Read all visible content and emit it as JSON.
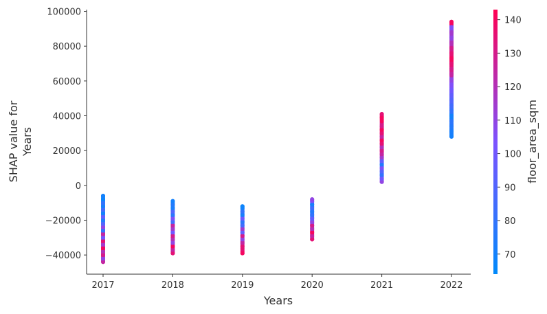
{
  "chart_data": {
    "type": "scatter",
    "title": "",
    "xlabel": "Years",
    "ylabel_lines": [
      "SHAP value for",
      "Years"
    ],
    "categories": [
      "2017",
      "2018",
      "2019",
      "2020",
      "2021",
      "2022"
    ],
    "x_tick_labels": [
      "2017",
      "2018",
      "2019",
      "2020",
      "2021",
      "2022"
    ],
    "ylim": [
      -51000,
      101000
    ],
    "y_ticks": [
      -40000,
      -20000,
      0,
      20000,
      40000,
      60000,
      80000,
      100000
    ],
    "y_tick_labels": [
      "−40000",
      "−20000",
      "0",
      "20000",
      "40000",
      "60000",
      "80000",
      "100000"
    ],
    "grid": false,
    "colorbar": {
      "label": "floor_area_sqm",
      "range": [
        64,
        143
      ],
      "ticks": [
        70,
        80,
        90,
        100,
        110,
        120,
        130,
        140
      ],
      "tick_labels": [
        "70",
        "80",
        "90",
        "100",
        "110",
        "120",
        "130",
        "140"
      ],
      "color_low": "#008afb",
      "color_mid": "#7c52ff",
      "color_high": "#ff0052"
    },
    "series": [
      {
        "x": "2017",
        "y_min": -44000,
        "y_max": -6000,
        "points": [
          {
            "y": -44000,
            "c": 125
          },
          {
            "y": -42000,
            "c": 110
          },
          {
            "y": -40000,
            "c": 130
          },
          {
            "y": -38000,
            "c": 120
          },
          {
            "y": -36000,
            "c": 140
          },
          {
            "y": -34000,
            "c": 115
          },
          {
            "y": -32000,
            "c": 135
          },
          {
            "y": -30000,
            "c": 100
          },
          {
            "y": -28000,
            "c": 125
          },
          {
            "y": -26000,
            "c": 80
          },
          {
            "y": -24000,
            "c": 110
          },
          {
            "y": -22000,
            "c": 90
          },
          {
            "y": -20000,
            "c": 75
          },
          {
            "y": -18000,
            "c": 95
          },
          {
            "y": -16000,
            "c": 70
          },
          {
            "y": -14000,
            "c": 85
          },
          {
            "y": -12000,
            "c": 72
          },
          {
            "y": -10000,
            "c": 80
          },
          {
            "y": -8000,
            "c": 68
          },
          {
            "y": -6000,
            "c": 70
          }
        ]
      },
      {
        "x": "2018",
        "y_min": -39000,
        "y_max": -9000,
        "points": [
          {
            "y": -39000,
            "c": 135
          },
          {
            "y": -37000,
            "c": 125
          },
          {
            "y": -35000,
            "c": 140
          },
          {
            "y": -33000,
            "c": 110
          },
          {
            "y": -31000,
            "c": 120
          },
          {
            "y": -29000,
            "c": 130
          },
          {
            "y": -27000,
            "c": 100
          },
          {
            "y": -25000,
            "c": 115
          },
          {
            "y": -23000,
            "c": 125
          },
          {
            "y": -21000,
            "c": 85
          },
          {
            "y": -19000,
            "c": 105
          },
          {
            "y": -17000,
            "c": 78
          },
          {
            "y": -15000,
            "c": 90
          },
          {
            "y": -13000,
            "c": 72
          },
          {
            "y": -11000,
            "c": 75
          },
          {
            "y": -9000,
            "c": 70
          }
        ]
      },
      {
        "x": "2019",
        "y_min": -39000,
        "y_max": -12000,
        "points": [
          {
            "y": -39000,
            "c": 140
          },
          {
            "y": -35000,
            "c": 135
          },
          {
            "y": -33000,
            "c": 125
          },
          {
            "y": -31000,
            "c": 110
          },
          {
            "y": -29000,
            "c": 130
          },
          {
            "y": -27000,
            "c": 95
          },
          {
            "y": -25000,
            "c": 115
          },
          {
            "y": -23000,
            "c": 85
          },
          {
            "y": -21000,
            "c": 78
          },
          {
            "y": -19000,
            "c": 100
          },
          {
            "y": -17000,
            "c": 72
          },
          {
            "y": -15000,
            "c": 80
          },
          {
            "y": -13000,
            "c": 70
          },
          {
            "y": -12000,
            "c": 68
          }
        ]
      },
      {
        "x": "2020",
        "y_min": -31000,
        "y_max": -8000,
        "points": [
          {
            "y": -31000,
            "c": 135
          },
          {
            "y": -29000,
            "c": 125
          },
          {
            "y": -27000,
            "c": 140
          },
          {
            "y": -25000,
            "c": 120
          },
          {
            "y": -23000,
            "c": 130
          },
          {
            "y": -21000,
            "c": 110
          },
          {
            "y": -19000,
            "c": 95
          },
          {
            "y": -17000,
            "c": 80
          },
          {
            "y": -15000,
            "c": 75
          },
          {
            "y": -13000,
            "c": 85
          },
          {
            "y": -11000,
            "c": 72
          },
          {
            "y": -9000,
            "c": 105
          },
          {
            "y": -8000,
            "c": 110
          }
        ]
      },
      {
        "x": "2021",
        "y_min": 2000,
        "y_max": 41000,
        "points": [
          {
            "y": 2000,
            "c": 110
          },
          {
            "y": 4000,
            "c": 100
          },
          {
            "y": 6000,
            "c": 80
          },
          {
            "y": 8000,
            "c": 90
          },
          {
            "y": 10000,
            "c": 105
          },
          {
            "y": 12000,
            "c": 75
          },
          {
            "y": 14000,
            "c": 95
          },
          {
            "y": 16000,
            "c": 115
          },
          {
            "y": 18000,
            "c": 125
          },
          {
            "y": 20000,
            "c": 130
          },
          {
            "y": 22000,
            "c": 120
          },
          {
            "y": 24000,
            "c": 135
          },
          {
            "y": 26000,
            "c": 140
          },
          {
            "y": 28000,
            "c": 125
          },
          {
            "y": 30000,
            "c": 135
          },
          {
            "y": 32000,
            "c": 140
          },
          {
            "y": 34000,
            "c": 130
          },
          {
            "y": 39000,
            "c": 140
          },
          {
            "y": 41000,
            "c": 135
          }
        ]
      },
      {
        "x": "2022",
        "y_min": 28000,
        "y_max": 94000,
        "points": [
          {
            "y": 28000,
            "c": 70
          },
          {
            "y": 31000,
            "c": 72
          },
          {
            "y": 34000,
            "c": 75
          },
          {
            "y": 37000,
            "c": 78
          },
          {
            "y": 40000,
            "c": 70
          },
          {
            "y": 43000,
            "c": 80
          },
          {
            "y": 46000,
            "c": 85
          },
          {
            "y": 49000,
            "c": 90
          },
          {
            "y": 52000,
            "c": 95
          },
          {
            "y": 55000,
            "c": 100
          },
          {
            "y": 58000,
            "c": 105
          },
          {
            "y": 61000,
            "c": 110
          },
          {
            "y": 64000,
            "c": 125
          },
          {
            "y": 67000,
            "c": 130
          },
          {
            "y": 70000,
            "c": 135
          },
          {
            "y": 73000,
            "c": 140
          },
          {
            "y": 76000,
            "c": 135
          },
          {
            "y": 79000,
            "c": 130
          },
          {
            "y": 82000,
            "c": 120
          },
          {
            "y": 85000,
            "c": 110
          },
          {
            "y": 88000,
            "c": 115
          },
          {
            "y": 91000,
            "c": 105
          },
          {
            "y": 94000,
            "c": 140
          }
        ]
      }
    ]
  }
}
